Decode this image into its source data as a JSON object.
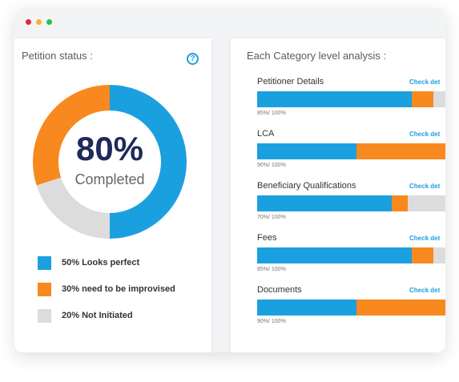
{
  "window": {
    "controls": [
      "close-dot",
      "minimize-dot",
      "maximize-dot"
    ]
  },
  "petition_status": {
    "title": "Petition status :",
    "help_icon": "?",
    "completion_value": "80%",
    "completion_label": "Completed",
    "donut": [
      {
        "name": "perfect",
        "percent": 50,
        "color": "#1ba0df"
      },
      {
        "name": "not_initiated",
        "percent": 20,
        "color": "#dcdcdc"
      },
      {
        "name": "improvise",
        "percent": 30,
        "color": "#f7891f"
      }
    ],
    "legend": [
      {
        "label": "50% Looks perfect",
        "color": "#1ba0df"
      },
      {
        "label": "30% need to be improvised",
        "color": "#f7891f"
      },
      {
        "label": "20% Not Initiated",
        "color": "#dcdcdc"
      }
    ]
  },
  "category_analysis": {
    "title": "Each Category level analysis :",
    "link_label": "Check det",
    "categories": [
      {
        "name": "Petitioner Details",
        "caption": "85%/ 100%",
        "perfect": 78,
        "improvise": 11
      },
      {
        "name": "LCA",
        "caption": "90%/ 100%",
        "perfect": 50,
        "improvise": 50
      },
      {
        "name": "Beneficiary Qualifications",
        "caption": "70%/ 100%",
        "perfect": 68,
        "improvise": 8
      },
      {
        "name": "Fees",
        "caption": "85%/ 100%",
        "perfect": 78,
        "improvise": 11
      },
      {
        "name": "Documents",
        "caption": "90%/ 100%",
        "perfect": 50,
        "improvise": 50
      }
    ]
  }
}
